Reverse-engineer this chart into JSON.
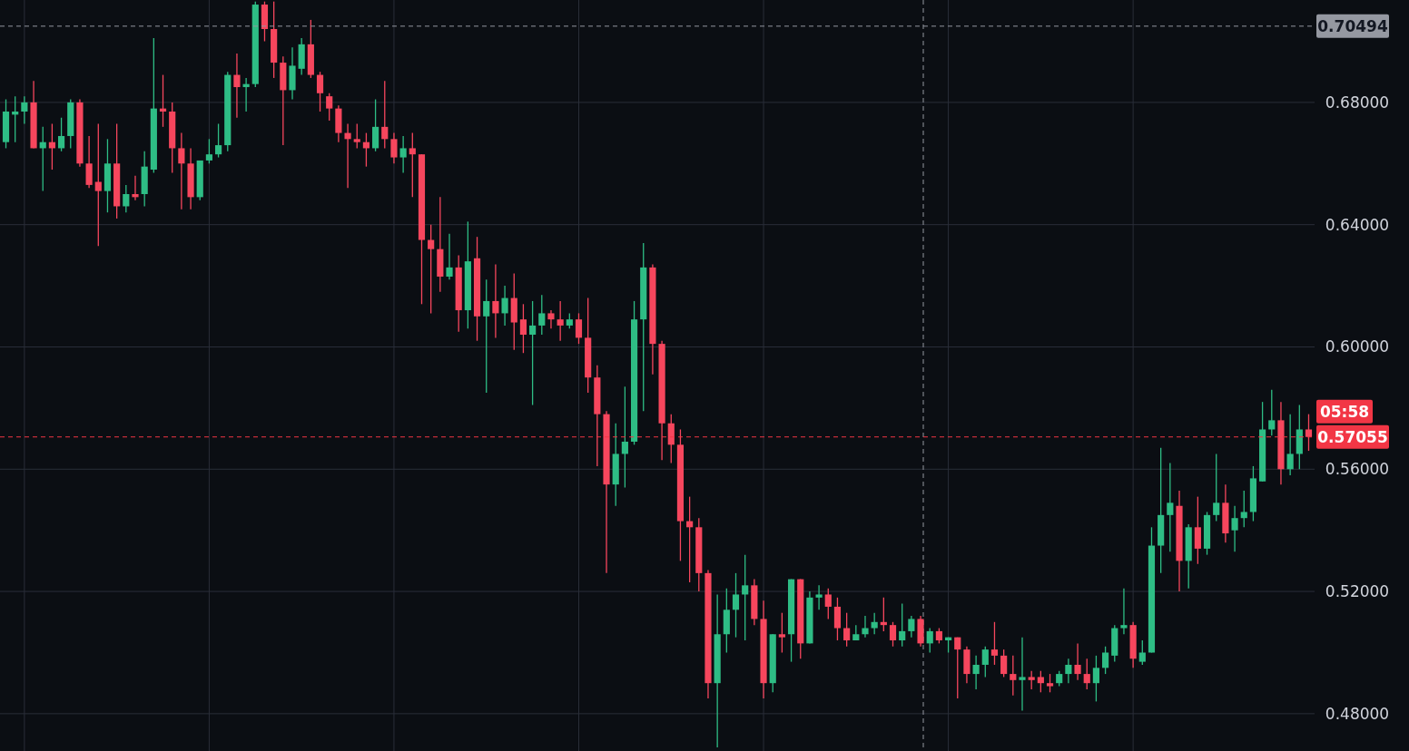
{
  "chart_data": {
    "type": "candlestick",
    "categories": [
      null,
      null,
      null,
      null,
      null,
      null,
      null,
      null,
      null,
      null,
      null,
      null,
      null,
      null,
      null,
      null,
      null,
      null,
      null,
      null,
      null,
      null,
      null,
      null,
      null,
      null,
      null,
      null,
      null,
      null,
      null,
      null,
      null,
      null,
      null,
      null,
      null,
      null,
      null,
      null,
      null,
      null,
      null,
      null,
      null,
      null,
      null,
      null,
      null,
      null,
      null,
      null,
      null,
      null,
      null,
      null,
      null,
      null,
      null,
      null,
      null,
      null,
      null,
      null,
      null,
      null,
      null,
      null,
      null,
      null,
      null,
      null,
      null,
      null,
      null,
      null,
      null,
      null,
      null,
      null,
      null,
      null,
      null,
      null,
      null,
      null,
      null,
      null,
      null,
      null,
      null,
      null,
      null,
      null,
      null,
      null,
      null,
      null,
      null,
      null,
      null,
      null,
      null,
      null,
      null,
      null,
      null,
      null,
      null,
      null,
      null,
      null,
      null,
      null,
      null,
      null,
      null,
      null,
      null,
      null,
      null,
      null,
      null,
      null,
      null,
      null,
      null,
      null,
      null,
      null,
      null,
      null,
      null,
      null,
      null,
      null,
      null,
      null,
      null,
      null,
      null,
      null
    ],
    "ohlc": [
      [
        0.667,
        0.681,
        0.665,
        0.677
      ],
      [
        0.676,
        0.682,
        0.667,
        0.677
      ],
      [
        0.677,
        0.682,
        0.673,
        0.68
      ],
      [
        0.68,
        0.687,
        0.665,
        0.665
      ],
      [
        0.665,
        0.672,
        0.651,
        0.667
      ],
      [
        0.667,
        0.673,
        0.658,
        0.665
      ],
      [
        0.665,
        0.675,
        0.664,
        0.669
      ],
      [
        0.669,
        0.681,
        0.665,
        0.68
      ],
      [
        0.68,
        0.681,
        0.659,
        0.66
      ],
      [
        0.66,
        0.669,
        0.652,
        0.653
      ],
      [
        0.654,
        0.673,
        0.633,
        0.651
      ],
      [
        0.651,
        0.668,
        0.644,
        0.66
      ],
      [
        0.66,
        0.673,
        0.642,
        0.646
      ],
      [
        0.646,
        0.653,
        0.644,
        0.65
      ],
      [
        0.65,
        0.656,
        0.648,
        0.649
      ],
      [
        0.65,
        0.664,
        0.646,
        0.659
      ],
      [
        0.658,
        0.701,
        0.657,
        0.678
      ],
      [
        0.678,
        0.689,
        0.672,
        0.677
      ],
      [
        0.677,
        0.68,
        0.657,
        0.665
      ],
      [
        0.665,
        0.67,
        0.645,
        0.66
      ],
      [
        0.66,
        0.665,
        0.645,
        0.649
      ],
      [
        0.649,
        0.661,
        0.648,
        0.661
      ],
      [
        0.661,
        0.668,
        0.66,
        0.663
      ],
      [
        0.663,
        0.673,
        0.662,
        0.666
      ],
      [
        0.666,
        0.69,
        0.664,
        0.689
      ],
      [
        0.689,
        0.696,
        0.675,
        0.685
      ],
      [
        0.685,
        0.688,
        0.677,
        0.686
      ],
      [
        0.686,
        0.713,
        0.685,
        0.712
      ],
      [
        0.712,
        0.713,
        0.7,
        0.704
      ],
      [
        0.704,
        0.713,
        0.688,
        0.693
      ],
      [
        0.693,
        0.695,
        0.666,
        0.684
      ],
      [
        0.684,
        0.698,
        0.681,
        0.692
      ],
      [
        0.691,
        0.701,
        0.689,
        0.699
      ],
      [
        0.699,
        0.707,
        0.688,
        0.689
      ],
      [
        0.689,
        0.69,
        0.677,
        0.683
      ],
      [
        0.682,
        0.683,
        0.674,
        0.678
      ],
      [
        0.678,
        0.679,
        0.667,
        0.67
      ],
      [
        0.67,
        0.673,
        0.652,
        0.668
      ],
      [
        0.668,
        0.673,
        0.665,
        0.667
      ],
      [
        0.667,
        0.67,
        0.659,
        0.665
      ],
      [
        0.665,
        0.681,
        0.664,
        0.672
      ],
      [
        0.672,
        0.687,
        0.665,
        0.668
      ],
      [
        0.668,
        0.67,
        0.66,
        0.662
      ],
      [
        0.662,
        0.669,
        0.657,
        0.665
      ],
      [
        0.665,
        0.67,
        0.649,
        0.663
      ],
      [
        0.663,
        0.663,
        0.614,
        0.635
      ],
      [
        0.635,
        0.64,
        0.611,
        0.632
      ],
      [
        0.632,
        0.649,
        0.618,
        0.623
      ],
      [
        0.623,
        0.637,
        0.622,
        0.626
      ],
      [
        0.626,
        0.63,
        0.605,
        0.612
      ],
      [
        0.612,
        0.641,
        0.606,
        0.628
      ],
      [
        0.629,
        0.636,
        0.602,
        0.61
      ],
      [
        0.61,
        0.622,
        0.585,
        0.615
      ],
      [
        0.615,
        0.627,
        0.603,
        0.611
      ],
      [
        0.611,
        0.62,
        0.607,
        0.616
      ],
      [
        0.616,
        0.624,
        0.599,
        0.608
      ],
      [
        0.609,
        0.614,
        0.598,
        0.604
      ],
      [
        0.604,
        0.615,
        0.581,
        0.607
      ],
      [
        0.607,
        0.617,
        0.604,
        0.611
      ],
      [
        0.611,
        0.612,
        0.606,
        0.609
      ],
      [
        0.609,
        0.615,
        0.602,
        0.607
      ],
      [
        0.607,
        0.611,
        0.606,
        0.609
      ],
      [
        0.609,
        0.611,
        0.601,
        0.603
      ],
      [
        0.603,
        0.616,
        0.585,
        0.59
      ],
      [
        0.59,
        0.594,
        0.561,
        0.578
      ],
      [
        0.578,
        0.579,
        0.526,
        0.555
      ],
      [
        0.555,
        0.575,
        0.548,
        0.565
      ],
      [
        0.565,
        0.587,
        0.554,
        0.569
      ],
      [
        0.569,
        0.615,
        0.568,
        0.609
      ],
      [
        0.609,
        0.634,
        0.579,
        0.626
      ],
      [
        0.626,
        0.627,
        0.591,
        0.601
      ],
      [
        0.601,
        0.602,
        0.563,
        0.575
      ],
      [
        0.575,
        0.578,
        0.562,
        0.568
      ],
      [
        0.568,
        0.573,
        0.53,
        0.543
      ],
      [
        0.543,
        0.551,
        0.523,
        0.541
      ],
      [
        0.541,
        0.544,
        0.52,
        0.526
      ],
      [
        0.526,
        0.527,
        0.485,
        0.49
      ],
      [
        0.49,
        0.519,
        0.469,
        0.506
      ],
      [
        0.506,
        0.521,
        0.5,
        0.514
      ],
      [
        0.514,
        0.526,
        0.505,
        0.519
      ],
      [
        0.519,
        0.532,
        0.504,
        0.522
      ],
      [
        0.522,
        0.524,
        0.509,
        0.511
      ],
      [
        0.511,
        0.517,
        0.485,
        0.49
      ],
      [
        0.49,
        0.506,
        0.487,
        0.506
      ],
      [
        0.506,
        0.513,
        0.5,
        0.505
      ],
      [
        0.506,
        0.524,
        0.497,
        0.524
      ],
      [
        0.524,
        0.524,
        0.498,
        0.503
      ],
      [
        0.503,
        0.52,
        0.503,
        0.518
      ],
      [
        0.518,
        0.522,
        0.514,
        0.519
      ],
      [
        0.519,
        0.521,
        0.511,
        0.515
      ],
      [
        0.515,
        0.518,
        0.504,
        0.508
      ],
      [
        0.508,
        0.513,
        0.502,
        0.504
      ],
      [
        0.504,
        0.509,
        0.504,
        0.506
      ],
      [
        0.506,
        0.512,
        0.505,
        0.508
      ],
      [
        0.508,
        0.513,
        0.506,
        0.51
      ],
      [
        0.51,
        0.518,
        0.507,
        0.509
      ],
      [
        0.509,
        0.51,
        0.502,
        0.504
      ],
      [
        0.504,
        0.516,
        0.502,
        0.507
      ],
      [
        0.507,
        0.512,
        0.505,
        0.511
      ],
      [
        0.511,
        0.512,
        0.502,
        0.503
      ],
      [
        0.503,
        0.508,
        0.5,
        0.507
      ],
      [
        0.507,
        0.508,
        0.503,
        0.504
      ],
      [
        0.504,
        0.505,
        0.5,
        0.505
      ],
      [
        0.505,
        0.505,
        0.485,
        0.501
      ],
      [
        0.501,
        0.502,
        0.49,
        0.493
      ],
      [
        0.493,
        0.499,
        0.488,
        0.496
      ],
      [
        0.496,
        0.502,
        0.492,
        0.501
      ],
      [
        0.501,
        0.51,
        0.496,
        0.499
      ],
      [
        0.499,
        0.501,
        0.492,
        0.493
      ],
      [
        0.493,
        0.499,
        0.486,
        0.491
      ],
      [
        0.491,
        0.505,
        0.481,
        0.492
      ],
      [
        0.492,
        0.494,
        0.488,
        0.491
      ],
      [
        0.492,
        0.494,
        0.487,
        0.49
      ],
      [
        0.49,
        0.493,
        0.487,
        0.489
      ],
      [
        0.49,
        0.494,
        0.489,
        0.493
      ],
      [
        0.493,
        0.498,
        0.49,
        0.496
      ],
      [
        0.496,
        0.503,
        0.491,
        0.493
      ],
      [
        0.493,
        0.498,
        0.488,
        0.49
      ],
      [
        0.49,
        0.499,
        0.484,
        0.495
      ],
      [
        0.495,
        0.502,
        0.493,
        0.5
      ],
      [
        0.499,
        0.509,
        0.497,
        0.508
      ],
      [
        0.508,
        0.521,
        0.506,
        0.509
      ],
      [
        0.509,
        0.51,
        0.495,
        0.498
      ],
      [
        0.497,
        0.504,
        0.496,
        0.5
      ],
      [
        0.5,
        0.541,
        0.5,
        0.535
      ],
      [
        0.535,
        0.567,
        0.526,
        0.545
      ],
      [
        0.545,
        0.562,
        0.533,
        0.549
      ],
      [
        0.548,
        0.553,
        0.52,
        0.53
      ],
      [
        0.53,
        0.542,
        0.521,
        0.541
      ],
      [
        0.541,
        0.551,
        0.529,
        0.534
      ],
      [
        0.534,
        0.546,
        0.532,
        0.545
      ],
      [
        0.545,
        0.565,
        0.543,
        0.549
      ],
      [
        0.549,
        0.555,
        0.536,
        0.539
      ],
      [
        0.54,
        0.548,
        0.533,
        0.544
      ],
      [
        0.544,
        0.553,
        0.541,
        0.546
      ],
      [
        0.546,
        0.561,
        0.543,
        0.557
      ],
      [
        0.556,
        0.582,
        0.556,
        0.573
      ],
      [
        0.573,
        0.586,
        0.571,
        0.576
      ],
      [
        0.576,
        0.582,
        0.555,
        0.56
      ],
      [
        0.56,
        0.578,
        0.558,
        0.565
      ],
      [
        0.565,
        0.581,
        0.56,
        0.573
      ],
      [
        0.573,
        0.578,
        0.566,
        0.57055
      ]
    ],
    "colors": [
      "#2ebd85",
      "#2ebd85",
      "#2ebd85",
      "#f6465d",
      "#2ebd85",
      "#f6465d",
      "#2ebd85",
      "#2ebd85",
      "#f6465d",
      "#f6465d",
      "#f6465d",
      "#2ebd85",
      "#f6465d",
      "#2ebd85",
      "#f6465d",
      "#2ebd85",
      "#2ebd85",
      "#f6465d",
      "#f6465d",
      "#f6465d",
      "#f6465d",
      "#2ebd85",
      "#2ebd85",
      "#2ebd85",
      "#2ebd85",
      "#f6465d",
      "#2ebd85",
      "#2ebd85",
      "#f6465d",
      "#f6465d",
      "#f6465d",
      "#2ebd85",
      "#2ebd85",
      "#f6465d",
      "#f6465d",
      "#f6465d",
      "#f6465d",
      "#f6465d",
      "#f6465d",
      "#f6465d",
      "#2ebd85",
      "#f6465d",
      "#f6465d",
      "#2ebd85",
      "#f6465d",
      "#f6465d",
      "#f6465d",
      "#f6465d",
      "#2ebd85",
      "#f6465d",
      "#2ebd85",
      "#f6465d",
      "#2ebd85",
      "#f6465d",
      "#2ebd85",
      "#f6465d",
      "#f6465d",
      "#2ebd85",
      "#2ebd85",
      "#f6465d",
      "#f6465d",
      "#2ebd85",
      "#f6465d",
      "#f6465d",
      "#f6465d",
      "#f6465d",
      "#2ebd85",
      "#2ebd85",
      "#2ebd85",
      "#2ebd85",
      "#f6465d",
      "#f6465d",
      "#f6465d",
      "#f6465d",
      "#f6465d",
      "#f6465d",
      "#f6465d",
      "#2ebd85",
      "#2ebd85",
      "#2ebd85",
      "#2ebd85",
      "#f6465d",
      "#f6465d",
      "#2ebd85",
      "#f6465d",
      "#2ebd85",
      "#f6465d",
      "#2ebd85",
      "#2ebd85",
      "#f6465d",
      "#f6465d",
      "#f6465d",
      "#2ebd85",
      "#2ebd85",
      "#2ebd85",
      "#f6465d",
      "#f6465d",
      "#2ebd85",
      "#2ebd85",
      "#f6465d",
      "#2ebd85",
      "#f6465d",
      "#2ebd85",
      "#f6465d",
      "#f6465d",
      "#2ebd85",
      "#2ebd85",
      "#f6465d",
      "#f6465d",
      "#f6465d",
      "#2ebd85",
      "#f6465d",
      "#f6465d",
      "#f6465d",
      "#2ebd85",
      "#2ebd85",
      "#f6465d",
      "#f6465d",
      "#2ebd85",
      "#2ebd85",
      "#2ebd85",
      "#2ebd85",
      "#f6465d",
      "#2ebd85",
      "#2ebd85",
      "#2ebd85",
      "#2ebd85",
      "#f6465d",
      "#2ebd85",
      "#f6465d",
      "#2ebd85",
      "#2ebd85",
      "#f6465d",
      "#2ebd85",
      "#2ebd85",
      "#2ebd85",
      "#2ebd85",
      "#2ebd85",
      "#f6465d",
      "#2ebd85",
      "#2ebd85",
      "#f6465d"
    ],
    "ylim": [
      0.4678,
      0.7135
    ],
    "yticks": [
      {
        "value": 0.48,
        "label": "0.48000"
      },
      {
        "value": 0.52,
        "label": "0.52000"
      },
      {
        "value": 0.56,
        "label": "0.56000"
      },
      {
        "value": 0.6,
        "label": "0.60000"
      },
      {
        "value": 0.64,
        "label": "0.64000"
      },
      {
        "value": 0.68,
        "label": "0.68000"
      }
    ],
    "grid": true,
    "ref_lines": [
      {
        "axis": "y",
        "value": 0.70494,
        "label": "0.70494",
        "color": "#9598a1",
        "line_style": "dashed"
      },
      {
        "axis": "y",
        "value": 0.57055,
        "label": "0.57055",
        "color": "#f23645",
        "line_style": "dashed"
      }
    ],
    "annotations": [
      "05:58"
    ]
  }
}
